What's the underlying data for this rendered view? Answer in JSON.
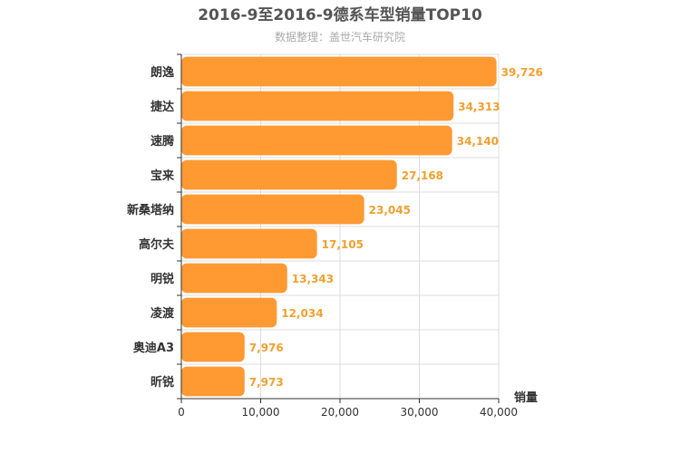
{
  "chart_data": {
    "type": "bar",
    "orientation": "horizontal",
    "title": "2016-9至2016-9德系车型销量TOP10",
    "subtitle": "数据整理：盖世汽车研究院",
    "xlabel": "销量",
    "ylabel": "",
    "categories": [
      "朗逸",
      "捷达",
      "速腾",
      "宝来",
      "新桑塔纳",
      "高尔夫",
      "明锐",
      "凌渡",
      "奥迪A3",
      "昕锐"
    ],
    "values": [
      39726,
      34313,
      34140,
      27168,
      23045,
      17105,
      13343,
      12034,
      7976,
      7973
    ],
    "value_labels": [
      "39,726",
      "34,313",
      "34,140",
      "27,168",
      "23,045",
      "17,105",
      "13,343",
      "12,034",
      "7,976",
      "7,973"
    ],
    "xlim": [
      0,
      40000
    ],
    "x_ticks": [
      0,
      10000,
      20000,
      30000,
      40000
    ],
    "x_tick_labels": [
      "0",
      "10,000",
      "20,000",
      "30,000",
      "40,000"
    ],
    "grid": true,
    "legend": "none",
    "bar_color": "#ff9a33",
    "label_color": "#f0a030"
  }
}
